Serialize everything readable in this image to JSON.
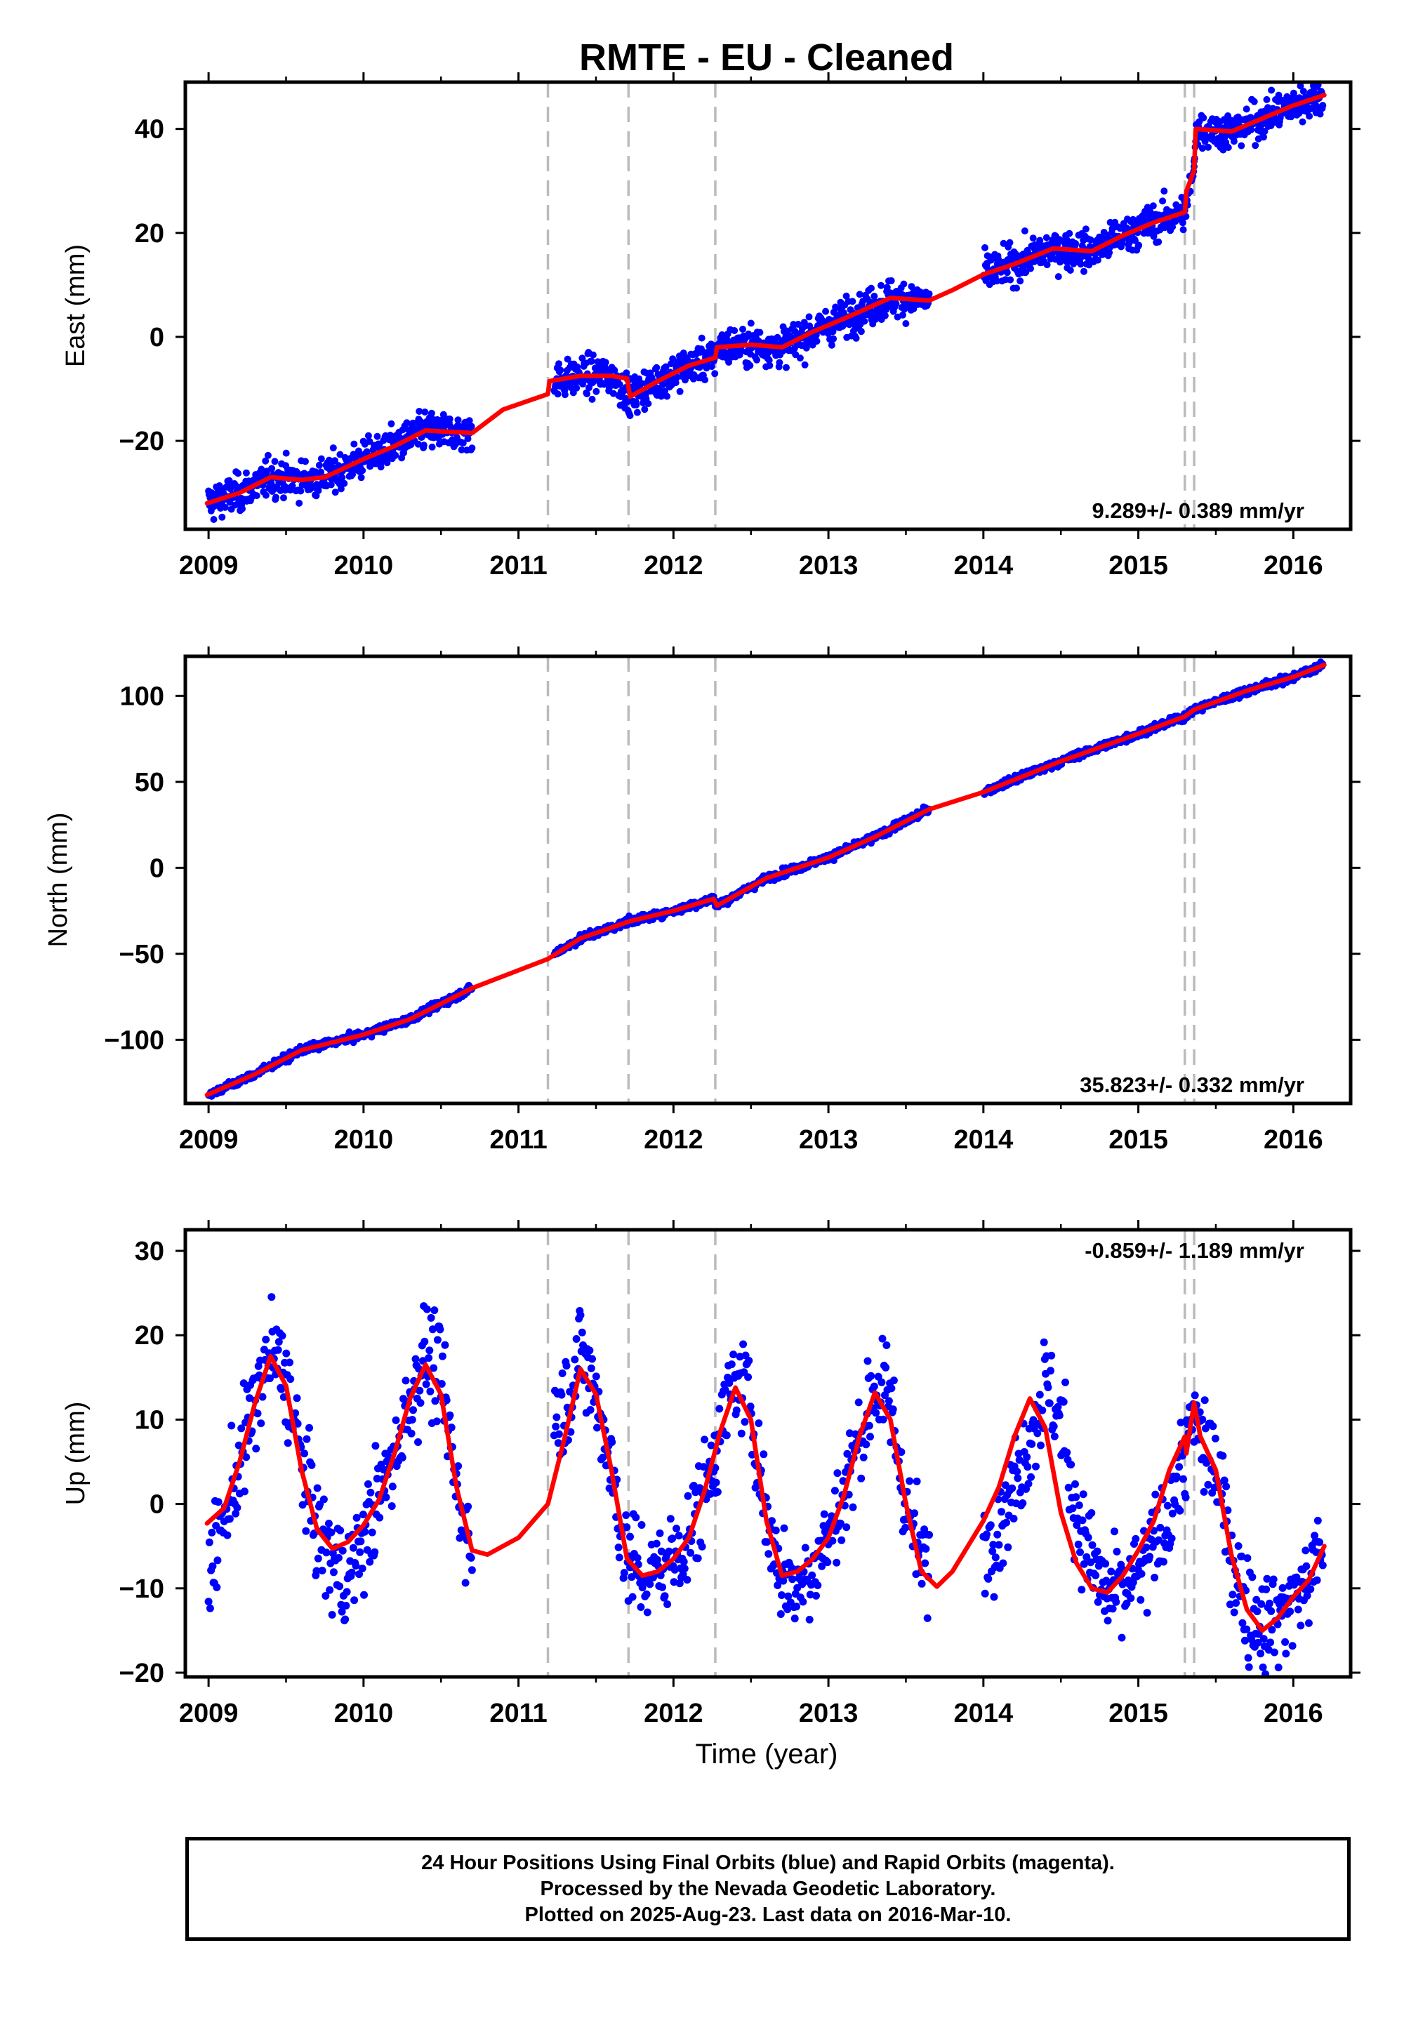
{
  "title": "RMTE  - EU - Cleaned",
  "xlabel": "Time (year)",
  "caption": [
    "24 Hour Positions Using Final Orbits (blue) and Rapid Orbits (magenta).",
    "Processed by the Nevada Geodetic Laboratory.",
    "Plotted on 2025-Aug-23. Last data on 2016-Mar-10."
  ],
  "colors": {
    "data": "#0000ff",
    "model": "#ff0000",
    "events": "#bbbbbb",
    "frame": "#000000"
  },
  "chart_data": [
    {
      "type": "scatter",
      "component": "east",
      "ylabel": "East (mm)",
      "rate_text": "9.289+/- 0.389 mm/yr",
      "xlim": [
        2008.85,
        2016.37
      ],
      "ylim": [
        -37,
        49
      ],
      "xticks": [
        "2009",
        "2010",
        "2011",
        "2012",
        "2013",
        "2014",
        "2015",
        "2016"
      ],
      "yticks": [
        "-20",
        "0",
        "20",
        "40"
      ],
      "event_lines": [
        2011.19,
        2011.71,
        2012.27,
        2015.3,
        2015.36
      ],
      "data_segments": [
        [
          2009.0,
          2010.7
        ],
        [
          2011.23,
          2011.72
        ],
        [
          2011.72,
          2012.27
        ],
        [
          2012.27,
          2013.65
        ],
        [
          2014.0,
          2015.3
        ],
        [
          2015.3,
          2015.36
        ],
        [
          2015.36,
          2016.19
        ]
      ],
      "series": [
        {
          "role": "model",
          "x": [
            2008.99,
            2009.2,
            2009.4,
            2009.6,
            2009.75,
            2010.0,
            2010.2,
            2010.4,
            2010.7,
            2010.9,
            2011.19,
            2011.2,
            2011.4,
            2011.6,
            2011.7,
            2011.72,
            2011.9,
            2012.1,
            2012.27,
            2012.28,
            2012.5,
            2012.7,
            2012.9,
            2013.1,
            2013.4,
            2013.65,
            2013.8,
            2014.0,
            2014.2,
            2014.45,
            2014.7,
            2014.9,
            2015.1,
            2015.3,
            2015.31,
            2015.36,
            2015.37,
            2015.6,
            2015.8,
            2016.0,
            2016.2
          ],
          "y": [
            -32,
            -30,
            -27,
            -27.5,
            -27,
            -23.5,
            -21,
            -18,
            -18.5,
            -14,
            -11,
            -8.5,
            -7.5,
            -7.5,
            -8,
            -11.5,
            -8.5,
            -5.5,
            -4,
            -2,
            -1.5,
            -2,
            1,
            3.5,
            7.5,
            7,
            9,
            12,
            14,
            17,
            16.5,
            19.5,
            22,
            24,
            28,
            32,
            40,
            39.5,
            42,
            44.5,
            46.5
          ]
        },
        {
          "role": "data",
          "scatter": 2.5,
          "x": [
            2009.0,
            2009.2,
            2009.4,
            2009.6,
            2009.75,
            2010.0,
            2010.2,
            2010.4,
            2010.7,
            2011.23,
            2011.4,
            2011.6,
            2011.72,
            2011.9,
            2012.1,
            2012.27,
            2012.28,
            2012.5,
            2012.7,
            2012.9,
            2013.1,
            2013.4,
            2013.65,
            2014.0,
            2014.2,
            2014.45,
            2014.7,
            2014.9,
            2015.1,
            2015.3,
            2015.36,
            2015.37,
            2015.6,
            2015.8,
            2016.0,
            2016.19
          ],
          "y": [
            -32,
            -30,
            -27,
            -27.5,
            -27,
            -23.5,
            -21,
            -18,
            -18.5,
            -8.5,
            -7.5,
            -7.5,
            -11.5,
            -8.5,
            -5.5,
            -4,
            -2,
            -1.5,
            -2,
            1,
            3.5,
            7.5,
            7,
            12,
            14,
            17,
            16.5,
            19.5,
            22,
            24,
            32,
            40,
            39.5,
            42,
            44.5,
            46.5
          ]
        }
      ]
    },
    {
      "type": "scatter",
      "component": "north",
      "ylabel": "North (mm)",
      "rate_text": "35.823+/- 0.332 mm/yr",
      "xlim": [
        2008.85,
        2016.37
      ],
      "ylim": [
        -137,
        123
      ],
      "xticks": [
        "2009",
        "2010",
        "2011",
        "2012",
        "2013",
        "2014",
        "2015",
        "2016"
      ],
      "yticks": [
        "-100",
        "-50",
        "0",
        "50",
        "100"
      ],
      "event_lines": [
        2011.19,
        2011.71,
        2012.27,
        2015.3,
        2015.36
      ],
      "data_segments": [
        [
          2009.0,
          2010.7
        ],
        [
          2011.23,
          2011.72
        ],
        [
          2011.72,
          2012.27
        ],
        [
          2012.27,
          2013.65
        ],
        [
          2014.0,
          2015.3
        ],
        [
          2015.3,
          2015.36
        ],
        [
          2015.36,
          2016.19
        ]
      ],
      "series": [
        {
          "role": "model",
          "x": [
            2008.99,
            2009.3,
            2009.6,
            2010.0,
            2010.3,
            2010.7,
            2011.19,
            2011.4,
            2011.72,
            2012.0,
            2012.26,
            2012.28,
            2012.6,
            2013.0,
            2013.3,
            2013.65,
            2014.0,
            2014.5,
            2015.0,
            2015.3,
            2015.36,
            2015.7,
            2016.0,
            2016.2
          ],
          "y": [
            -132,
            -120,
            -106,
            -97,
            -88,
            -70,
            -53,
            -41,
            -31,
            -25,
            -18,
            -22,
            -6,
            6,
            18,
            34,
            44,
            62,
            78,
            88,
            92,
            103,
            111,
            118
          ]
        },
        {
          "role": "data",
          "scatter": 1.6,
          "x": [
            2009.0,
            2009.3,
            2009.6,
            2010.0,
            2010.3,
            2010.7,
            2011.23,
            2011.4,
            2011.72,
            2012.0,
            2012.26,
            2012.28,
            2012.6,
            2013.0,
            2013.3,
            2013.65,
            2014.0,
            2014.5,
            2015.0,
            2015.3,
            2015.36,
            2015.7,
            2016.0,
            2016.19
          ],
          "y": [
            -132,
            -120,
            -106,
            -97,
            -88,
            -70,
            -50,
            -41,
            -31,
            -25,
            -18,
            -22,
            -6,
            6,
            18,
            34,
            44,
            62,
            78,
            88,
            92,
            103,
            111,
            118
          ]
        }
      ]
    },
    {
      "type": "scatter",
      "component": "up",
      "ylabel": "Up (mm)",
      "rate_text": "-0.859+/- 1.189 mm/yr",
      "xlim": [
        2008.85,
        2016.37
      ],
      "ylim": [
        -20.5,
        32.5
      ],
      "xticks": [
        "2009",
        "2010",
        "2011",
        "2012",
        "2013",
        "2014",
        "2015",
        "2016"
      ],
      "yticks": [
        "-20",
        "-10",
        "0",
        "10",
        "20",
        "30"
      ],
      "event_lines": [
        2011.19,
        2011.71,
        2012.27,
        2015.3,
        2015.36
      ],
      "data_segments": [
        [
          2009.0,
          2010.7
        ],
        [
          2011.23,
          2011.72
        ],
        [
          2011.72,
          2012.27
        ],
        [
          2012.27,
          2013.65
        ],
        [
          2014.0,
          2015.3
        ],
        [
          2015.3,
          2015.36
        ],
        [
          2015.36,
          2016.19
        ]
      ],
      "series": [
        {
          "role": "model",
          "x": [
            2008.99,
            2009.1,
            2009.2,
            2009.3,
            2009.4,
            2009.5,
            2009.6,
            2009.7,
            2009.8,
            2009.9,
            2010.0,
            2010.1,
            2010.2,
            2010.3,
            2010.4,
            2010.5,
            2010.6,
            2010.7,
            2010.8,
            2010.9,
            2011.0,
            2011.19,
            2011.3,
            2011.4,
            2011.5,
            2011.6,
            2011.7,
            2011.8,
            2011.9,
            2012.0,
            2012.1,
            2012.2,
            2012.3,
            2012.4,
            2012.5,
            2012.6,
            2012.7,
            2012.8,
            2012.9,
            2013.0,
            2013.1,
            2013.2,
            2013.3,
            2013.4,
            2013.5,
            2013.6,
            2013.7,
            2013.8,
            2013.9,
            2014.0,
            2014.1,
            2014.2,
            2014.3,
            2014.4,
            2014.5,
            2014.6,
            2014.7,
            2014.8,
            2014.9,
            2015.0,
            2015.1,
            2015.2,
            2015.3,
            2015.31,
            2015.36,
            2015.4,
            2015.5,
            2015.6,
            2015.7,
            2015.8,
            2015.9,
            2016.0,
            2016.1,
            2016.2
          ],
          "y": [
            -2.3,
            -0.5,
            5,
            12,
            17.5,
            14,
            4,
            -3,
            -5.3,
            -4.5,
            -2.5,
            0.5,
            6,
            12.5,
            16.5,
            13,
            2,
            -5.5,
            -6,
            -5,
            -4,
            0,
            8,
            16,
            13,
            4,
            -6.5,
            -8.5,
            -8,
            -6.5,
            -4,
            1.5,
            8.5,
            13.8,
            10,
            -2,
            -8.5,
            -8,
            -6.5,
            -4,
            1,
            8,
            13.2,
            10,
            0,
            -8,
            -9.8,
            -8,
            -5,
            -2,
            2,
            8,
            12.5,
            9,
            -1,
            -7,
            -10,
            -10.5,
            -8.5,
            -5.5,
            -2,
            4,
            8,
            6,
            12,
            8,
            4,
            -6,
            -12.5,
            -15,
            -13.5,
            -11,
            -9,
            -5
          ]
        },
        {
          "role": "data",
          "scatter": 4.2,
          "x": [
            2009.0,
            2009.1,
            2009.2,
            2009.3,
            2009.4,
            2009.5,
            2009.6,
            2009.7,
            2009.8,
            2009.9,
            2010.0,
            2010.1,
            2010.2,
            2010.3,
            2010.4,
            2010.5,
            2010.6,
            2010.7,
            2011.23,
            2011.3,
            2011.4,
            2011.5,
            2011.6,
            2011.7,
            2011.8,
            2011.9,
            2012.0,
            2012.1,
            2012.2,
            2012.3,
            2012.4,
            2012.5,
            2012.6,
            2012.7,
            2012.8,
            2012.9,
            2013.0,
            2013.1,
            2013.2,
            2013.3,
            2013.4,
            2013.5,
            2013.6,
            2014.0,
            2014.1,
            2014.2,
            2014.3,
            2014.4,
            2014.5,
            2014.6,
            2014.7,
            2014.8,
            2014.9,
            2015.0,
            2015.1,
            2015.2,
            2015.3,
            2015.36,
            2015.4,
            2015.5,
            2015.6,
            2015.7,
            2015.8,
            2015.9,
            2016.0,
            2016.1,
            2016.19
          ],
          "y": [
            -8,
            -2,
            5,
            12,
            18,
            15,
            5,
            -3,
            -7,
            -9,
            -4,
            0.5,
            6,
            12.5,
            18,
            15,
            2,
            -6,
            10,
            12,
            18,
            13,
            4,
            -6.5,
            -8.5,
            -8,
            -6.5,
            -4,
            1.5,
            8.5,
            15,
            12,
            -2,
            -8.5,
            -10,
            -7,
            -4,
            1,
            8,
            14,
            12,
            0,
            -7,
            -5,
            -2,
            2,
            8,
            14,
            10,
            -1,
            -7,
            -11,
            -10.5,
            -8.5,
            -5.5,
            -1,
            6,
            10,
            8,
            4,
            -6,
            -12.5,
            -14,
            -13.5,
            -11,
            -9,
            -5
          ]
        }
      ]
    }
  ]
}
